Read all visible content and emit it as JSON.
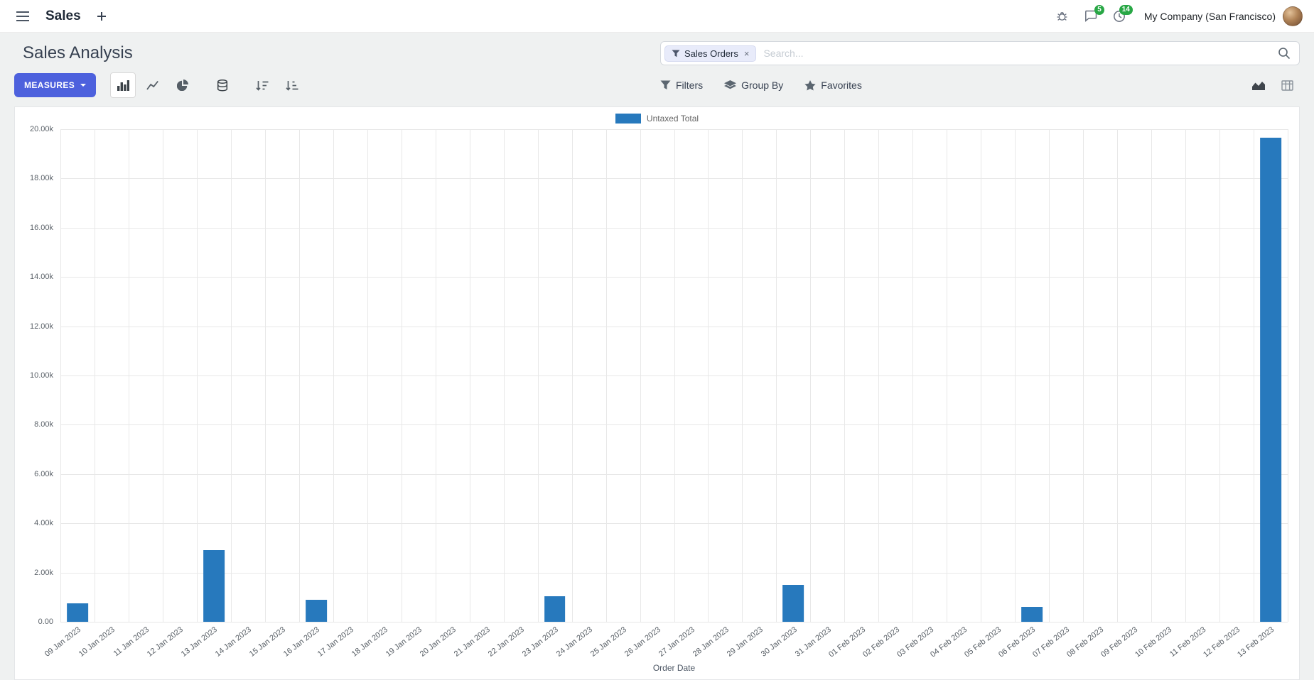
{
  "navbar": {
    "app_name": "Sales",
    "messages_badge": "5",
    "activities_badge": "14",
    "company": "My Company (San Francisco)"
  },
  "control_panel": {
    "title": "Sales Analysis",
    "search": {
      "facet_label": "Sales Orders",
      "facet_remove": "×",
      "placeholder": "Search..."
    },
    "measures_label": "MEASURES",
    "filters_label": "Filters",
    "group_by_label": "Group By",
    "favorites_label": "Favorites"
  },
  "colors": {
    "primary_button": "#4d61dd",
    "bar_blue": "#2779bd",
    "badge_green": "#28a745"
  },
  "chart_data": {
    "type": "bar",
    "title": "",
    "xlabel": "Order Date",
    "ylabel": "",
    "ylim": [
      0,
      20000
    ],
    "ytick_step": 2000,
    "ytick_labels": [
      "0.00",
      "2.00k",
      "4.00k",
      "6.00k",
      "8.00k",
      "10.00k",
      "12.00k",
      "14.00k",
      "16.00k",
      "18.00k",
      "20.00k"
    ],
    "grid": true,
    "legend_position": "top",
    "categories": [
      "09 Jan 2023",
      "10 Jan 2023",
      "11 Jan 2023",
      "12 Jan 2023",
      "13 Jan 2023",
      "14 Jan 2023",
      "15 Jan 2023",
      "16 Jan 2023",
      "17 Jan 2023",
      "18 Jan 2023",
      "19 Jan 2023",
      "20 Jan 2023",
      "21 Jan 2023",
      "22 Jan 2023",
      "23 Jan 2023",
      "24 Jan 2023",
      "25 Jan 2023",
      "26 Jan 2023",
      "27 Jan 2023",
      "28 Jan 2023",
      "29 Jan 2023",
      "30 Jan 2023",
      "31 Jan 2023",
      "01 Feb 2023",
      "02 Feb 2023",
      "03 Feb 2023",
      "04 Feb 2023",
      "05 Feb 2023",
      "06 Feb 2023",
      "07 Feb 2023",
      "08 Feb 2023",
      "09 Feb 2023",
      "10 Feb 2023",
      "11 Feb 2023",
      "12 Feb 2023",
      "13 Feb 2023"
    ],
    "series": [
      {
        "name": "Untaxed Total",
        "color": "#2779bd",
        "values": [
          750,
          0,
          0,
          0,
          2900,
          0,
          0,
          900,
          0,
          0,
          0,
          0,
          0,
          0,
          1050,
          0,
          0,
          0,
          0,
          0,
          0,
          1500,
          0,
          0,
          0,
          0,
          0,
          0,
          620,
          0,
          0,
          0,
          0,
          0,
          0,
          19650
        ]
      }
    ]
  }
}
